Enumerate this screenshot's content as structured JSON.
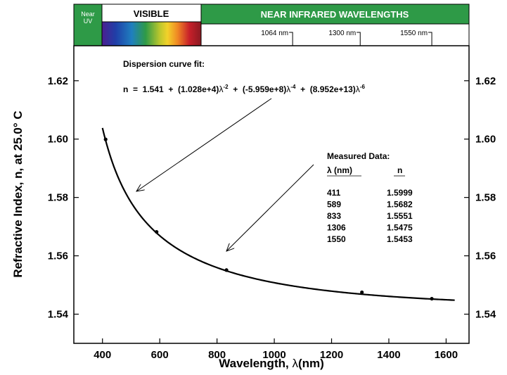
{
  "spectrum_band": {
    "near_uv_label": [
      "Near",
      "UV"
    ],
    "visible_label": "VISIBLE",
    "nir_label": "NEAR INFRARED WAVELENGTHS",
    "nir_markers": [
      {
        "label": "1064 nm",
        "wavelength": 1064
      },
      {
        "label": "1300 nm",
        "wavelength": 1300
      },
      {
        "label": "1550 nm",
        "wavelength": 1550
      }
    ],
    "colors": {
      "band_green": "#2e9a47",
      "uv_green": "#2e9a47"
    }
  },
  "chart_data": {
    "type": "scatter",
    "xlabel_main": "Wavelength, ",
    "xlabel_sym": "λ",
    "xlabel_unit": "(nm)",
    "ylabel": "Refractive Index, n, at 25.0° C",
    "xlim": [
      300,
      1680
    ],
    "ylim": [
      1.53,
      1.632
    ],
    "xticks": [
      400,
      600,
      800,
      1000,
      1200,
      1400,
      1600
    ],
    "xtick_labels": [
      "400",
      "600",
      "800",
      "1000",
      "1200",
      "1400",
      "1600"
    ],
    "yticks": [
      1.54,
      1.56,
      1.58,
      1.6,
      1.62
    ],
    "ytick_labels": [
      "1.54",
      "1.56",
      "1.58",
      "1.60",
      "1.62"
    ],
    "series": [
      {
        "type": "scatter",
        "x": [
          411,
          589,
          833,
          1306,
          1550
        ],
        "y": [
          1.5999,
          1.5682,
          1.5551,
          1.5475,
          1.5453
        ]
      },
      {
        "type": "line",
        "fit_coefficients": {
          "A": 1.541,
          "B": 10280,
          "C": -595900000,
          "D": 89520000000000
        },
        "x_range": [
          400,
          1630
        ]
      }
    ],
    "fit_title": "Dispersion curve fit:",
    "fit_equation": {
      "lhs": "n  =  1.541  +  (1.028e+4)",
      "t1": "  +  (-5.959e+8)",
      "t2": "  +  (8.952e+13)",
      "lambda": "λ",
      "exp1": "-2",
      "exp2": "-4",
      "exp3": "-6"
    },
    "measured_title": "Measured Data:",
    "col_lambda": "λ (nm)",
    "col_n": "n",
    "table": [
      {
        "lambda": "411",
        "n": "1.5999"
      },
      {
        "lambda": "589",
        "n": "1.5682"
      },
      {
        "lambda": "833",
        "n": "1.5551"
      },
      {
        "lambda": "1306",
        "n": "1.5475"
      },
      {
        "lambda": "1550",
        "n": "1.5453"
      }
    ]
  }
}
